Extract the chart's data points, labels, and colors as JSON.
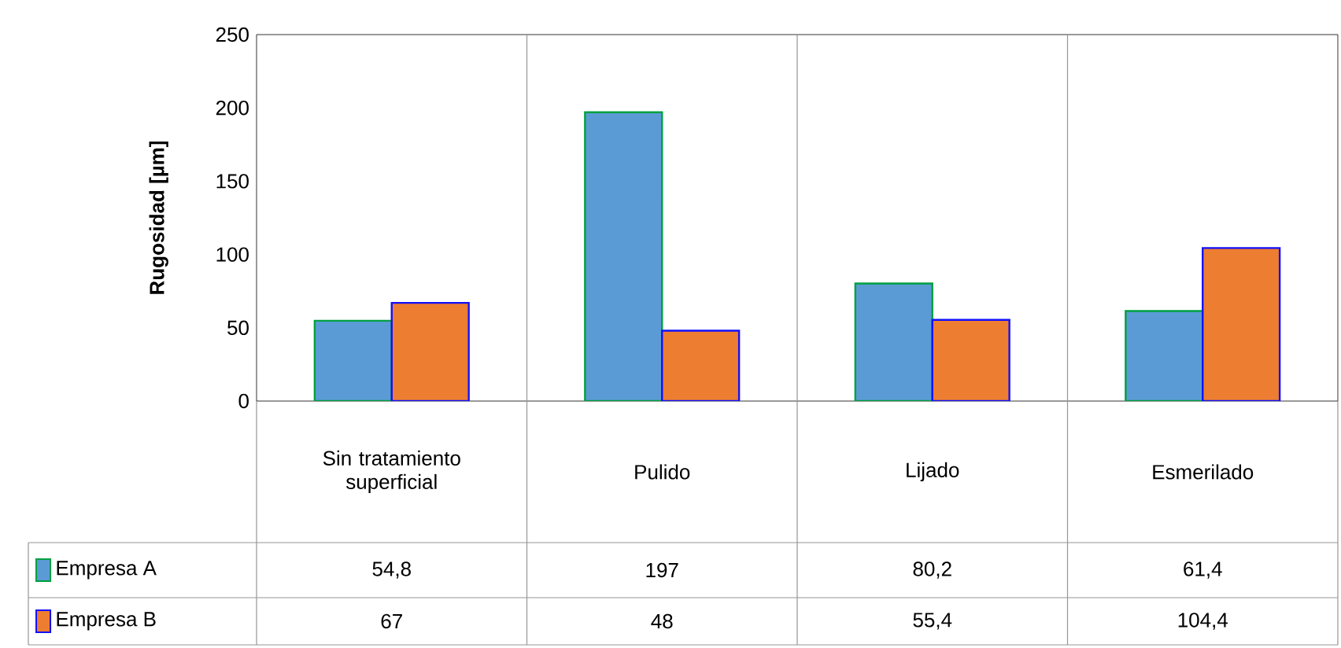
{
  "chart_data": {
    "type": "bar",
    "ylabel": "Rugosidad [µm]",
    "categories": [
      "Sin tratamiento superficial",
      "Pulido",
      "Lijado",
      "Esmerilado"
    ],
    "series": [
      {
        "name": "Empresa A",
        "color": "#5b9bd5",
        "values": [
          54.8,
          197,
          80.2,
          61.4
        ],
        "value_labels": [
          "54,8",
          "197",
          "80,2",
          "61,4"
        ]
      },
      {
        "name": "Empresa B",
        "color": "#ed7d31",
        "values": [
          67,
          48,
          55.4,
          104.4
        ],
        "value_labels": [
          "67",
          "48",
          "55,4",
          "104,4"
        ]
      }
    ],
    "ylim": [
      0,
      250
    ],
    "yticks": [
      0,
      50,
      100,
      150,
      200,
      250
    ],
    "grid": false,
    "legend": "bottom"
  }
}
